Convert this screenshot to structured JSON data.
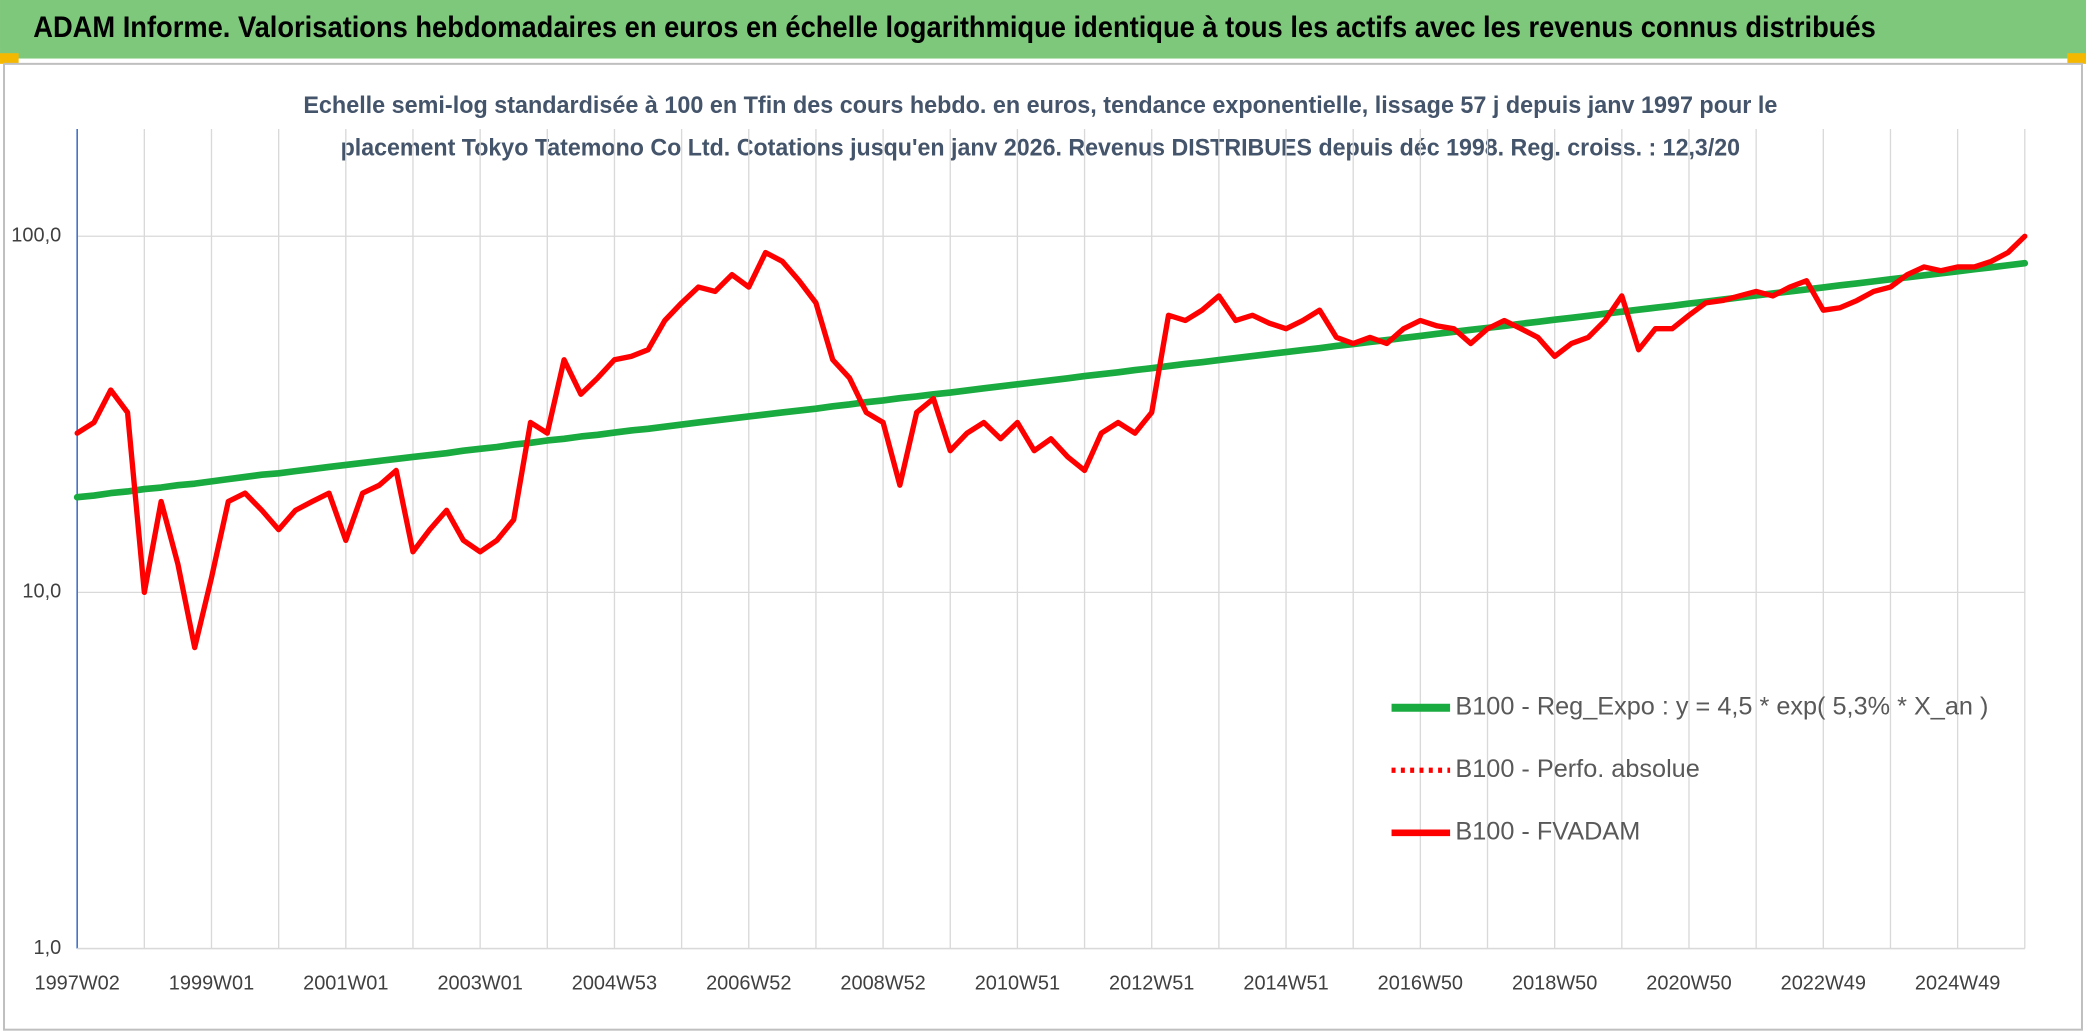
{
  "header": {
    "title": "ADAM Informe. Valorisations hebdomadaires en euros en échelle logarithmique identique à tous les actifs avec les revenus connus distribués"
  },
  "chart_data": {
    "type": "line",
    "title_lines": [
      "Echelle semi-log standardisée à 100 en Tfin des cours hebdo. en euros, tendance exponentielle, lissage 57 j depuis janv 1997 pour le",
      "placement Tokyo Tatemono Co Ltd. Cotations jusqu'en janv 2026. Revenus DISTRIBUES depuis déc 1998. Reg. croiss. : 12,3/20"
    ],
    "log_scale": true,
    "grid": true,
    "ylim": [
      1,
      200
    ],
    "yticks": [
      {
        "value": 1,
        "label": "1,0"
      },
      {
        "value": 10,
        "label": "10,0"
      },
      {
        "value": 100,
        "label": "100,0"
      }
    ],
    "categories": [
      "1997W02",
      null,
      null,
      null,
      null,
      null,
      null,
      null,
      "1999W01",
      null,
      null,
      null,
      null,
      null,
      null,
      null,
      "2001W01",
      null,
      null,
      null,
      null,
      null,
      null,
      null,
      "2003W01",
      null,
      null,
      null,
      null,
      null,
      null,
      null,
      "2004W53",
      null,
      null,
      null,
      null,
      null,
      null,
      null,
      "2006W52",
      null,
      null,
      null,
      null,
      null,
      null,
      null,
      "2008W52",
      null,
      null,
      null,
      null,
      null,
      null,
      null,
      "2010W51",
      null,
      null,
      null,
      null,
      null,
      null,
      null,
      "2012W51",
      null,
      null,
      null,
      null,
      null,
      null,
      null,
      "2014W51",
      null,
      null,
      null,
      null,
      null,
      null,
      null,
      "2016W50",
      null,
      null,
      null,
      null,
      null,
      null,
      null,
      "2018W50",
      null,
      null,
      null,
      null,
      null,
      null,
      null,
      "2020W50",
      null,
      null,
      null,
      null,
      null,
      null,
      null,
      "2022W49",
      null,
      null,
      null,
      null,
      null,
      null,
      null,
      "2024W49",
      null,
      null,
      null,
      null
    ],
    "series": [
      {
        "name": "B100 - Reg_Expo : y = 4,5 * exp( 5,3% *  X_an )",
        "color": "#1aab40",
        "dash": "solid",
        "width": 5,
        "values": [
          18.5,
          18.7,
          19.0,
          19.2,
          19.5,
          19.7,
          20.0,
          20.2,
          20.5,
          20.8,
          21.1,
          21.4,
          21.6,
          21.9,
          22.2,
          22.5,
          22.8,
          23.1,
          23.4,
          23.7,
          24.0,
          24.3,
          24.6,
          25.0,
          25.3,
          25.6,
          26.0,
          26.3,
          26.7,
          27.0,
          27.4,
          27.7,
          28.1,
          28.5,
          28.8,
          29.2,
          29.6,
          30.0,
          30.4,
          30.8,
          31.2,
          31.6,
          32.0,
          32.4,
          32.8,
          33.3,
          33.7,
          34.2,
          34.6,
          35.1,
          35.5,
          36.0,
          36.4,
          36.9,
          37.4,
          37.9,
          38.4,
          38.9,
          39.4,
          39.9,
          40.5,
          41.0,
          41.5,
          42.1,
          42.6,
          43.2,
          43.8,
          44.3,
          44.9,
          45.5,
          46.1,
          46.7,
          47.3,
          47.9,
          48.5,
          49.2,
          49.8,
          50.5,
          51.1,
          51.8,
          52.5,
          53.2,
          53.9,
          54.6,
          55.3,
          56.0,
          56.8,
          57.5,
          58.3,
          59.0,
          59.8,
          60.6,
          61.4,
          62.2,
          63.0,
          63.8,
          64.7,
          65.5,
          66.4,
          67.3,
          68.2,
          69.1,
          70.0,
          70.9,
          71.8,
          72.8,
          73.7,
          74.7,
          75.7,
          76.7,
          77.7,
          78.7,
          79.7,
          80.8,
          81.8,
          82.9,
          84.0
        ]
      },
      {
        "name": "B100 - Perfo. absolue",
        "color": "#ff0000",
        "dash": "dotted",
        "width": 3,
        "values": [
          28,
          30,
          37,
          32,
          10,
          18,
          12,
          7,
          11,
          18,
          19,
          17,
          15,
          17,
          18,
          19,
          14,
          19,
          20,
          22,
          13,
          15,
          17,
          14,
          13,
          14,
          16,
          30,
          28,
          45,
          36,
          40,
          45,
          46,
          48,
          58,
          65,
          72,
          70,
          78,
          72,
          90,
          85,
          75,
          65,
          45,
          40,
          32,
          30,
          20,
          32,
          35,
          25,
          28,
          30,
          27,
          30,
          25,
          27,
          24,
          22,
          28,
          30,
          28,
          32,
          60,
          58,
          62,
          68,
          58,
          60,
          57,
          55,
          58,
          62,
          52,
          50,
          52,
          50,
          55,
          58,
          56,
          55,
          50,
          55,
          58,
          55,
          52,
          46,
          50,
          52,
          58,
          68,
          48,
          55,
          55,
          60,
          65,
          66,
          68,
          70,
          68,
          72,
          75,
          62,
          63,
          66,
          70,
          72,
          78,
          82,
          80,
          82,
          82,
          85,
          90,
          100
        ]
      },
      {
        "name": "B100 - FVADAM",
        "color": "#ff0000",
        "dash": "solid",
        "width": 4,
        "values": [
          28,
          30,
          37,
          32,
          10,
          18,
          12,
          7,
          11,
          18,
          19,
          17,
          15,
          17,
          18,
          19,
          14,
          19,
          20,
          22,
          13,
          15,
          17,
          14,
          13,
          14,
          16,
          30,
          28,
          45,
          36,
          40,
          45,
          46,
          48,
          58,
          65,
          72,
          70,
          78,
          72,
          90,
          85,
          75,
          65,
          45,
          40,
          32,
          30,
          20,
          32,
          35,
          25,
          28,
          30,
          27,
          30,
          25,
          27,
          24,
          22,
          28,
          30,
          28,
          32,
          60,
          58,
          62,
          68,
          58,
          60,
          57,
          55,
          58,
          62,
          52,
          50,
          52,
          50,
          55,
          58,
          56,
          55,
          50,
          55,
          58,
          55,
          52,
          46,
          50,
          52,
          58,
          68,
          48,
          55,
          55,
          60,
          65,
          66,
          68,
          70,
          68,
          72,
          75,
          62,
          63,
          66,
          70,
          72,
          78,
          82,
          80,
          82,
          82,
          85,
          90,
          100
        ]
      }
    ]
  }
}
